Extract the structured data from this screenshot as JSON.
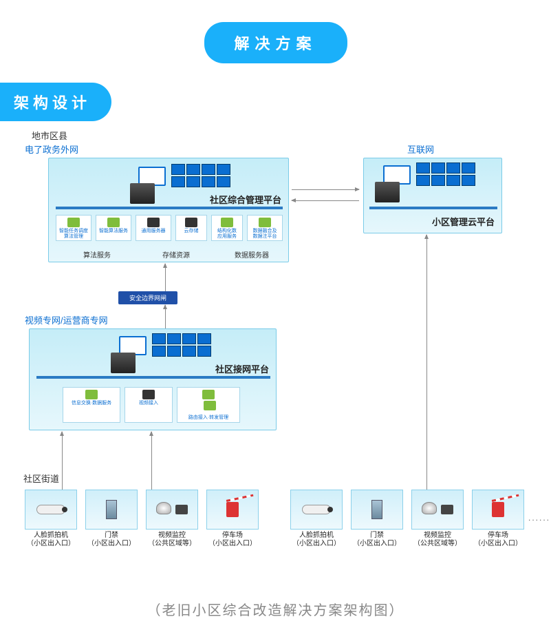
{
  "badges": {
    "solution": "解决方案",
    "architecture": "架构设计"
  },
  "colors": {
    "accent": "#1ab0fa",
    "box_border": "#7acbe8",
    "box_bg_top": "#c5edf8",
    "box_bg_bottom": "#e6f7fc",
    "device_bg_top": "#d0effa",
    "device_bg_bottom": "#eef9fd",
    "blue_text": "#0a6ed1",
    "sec_bar": "#2050a8",
    "arrow": "#888888"
  },
  "labels": {
    "district": "地市区县",
    "gov_extranet": "电了政务外网",
    "internet": "互联网",
    "video_net": "视频专⽹/运营商专⽹",
    "street": "社区街道"
  },
  "platforms": {
    "community_mgmt": "社区综合管理平台",
    "cloud": "小区管理云平台",
    "access_net": "社区接网平台"
  },
  "gov_subs": [
    {
      "label": "智能任务调度\n算法管理"
    },
    {
      "label": "智能算法服务"
    },
    {
      "label": "通用服务器"
    },
    {
      "label": "云存储"
    },
    {
      "label": "结构化数\n应用服务"
    },
    {
      "label": "数据融合及\n数据注平台"
    }
  ],
  "gov_sections": [
    {
      "label": "算法服务"
    },
    {
      "label": "存储资源"
    },
    {
      "label": "数据服务器"
    }
  ],
  "sec_boundary": "安全边界网闸",
  "access_subs": [
    {
      "label": "信息交换·数据服务",
      "icon": "green"
    },
    {
      "label": "视频接入",
      "icon": "dark"
    },
    {
      "label": "路由接入·转发管理",
      "icon": "green"
    }
  ],
  "devices_left": [
    {
      "name": "人脸抓拍机",
      "sub": "（小区出入口）",
      "icon": "camera"
    },
    {
      "name": "门禁",
      "sub": "（小区出入口）",
      "icon": "gate"
    },
    {
      "name": "视频监控",
      "sub": "（公共区域等）",
      "icon": "dome"
    },
    {
      "name": "停车场",
      "sub": "（小区出入口）",
      "icon": "barrier"
    }
  ],
  "devices_right": [
    {
      "name": "人脸抓拍机",
      "sub": "（小区出入口）",
      "icon": "camera"
    },
    {
      "name": "门禁",
      "sub": "（小区出入口）",
      "icon": "gate"
    },
    {
      "name": "视频监控",
      "sub": "（公共区域等）",
      "icon": "dome"
    },
    {
      "name": "停车场",
      "sub": "（小区出入口）",
      "icon": "barrier"
    }
  ],
  "caption": "（老旧小区综合改造解决方案架构图）",
  "dots": "......"
}
